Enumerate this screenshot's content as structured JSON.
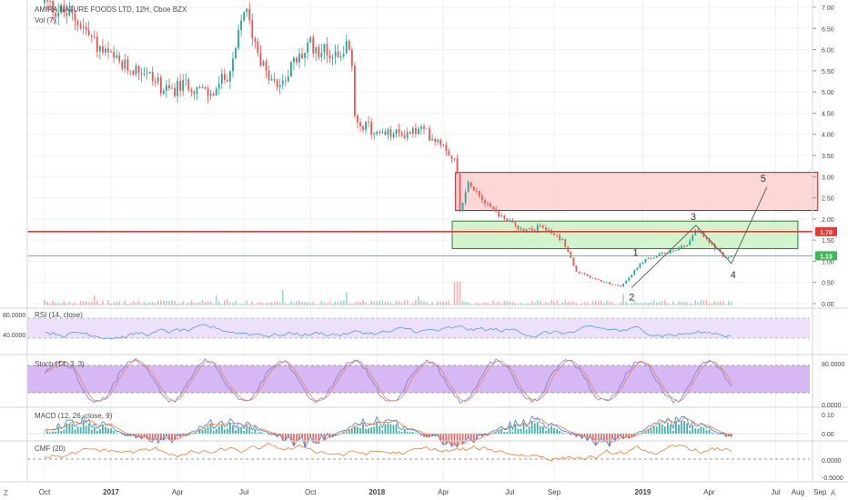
{
  "header": {
    "title": "AMIRA NATURE FOODS LTD, 12H, Cboe BZX",
    "volume": "Vol (7)"
  },
  "colors": {
    "up": "#26a69a",
    "down": "#ef5350",
    "grid": "#eef0f3",
    "axis": "#d1d4dc",
    "price_line": "#e53935",
    "support_line": "#43c96a",
    "resistance_box_fill": "#fbd3d1",
    "resistance_box_stroke": "#b71c1c",
    "support_box_fill": "#cdf3c8",
    "support_box_stroke": "#2e7d32",
    "rsi": "#4e9fdc",
    "rsi_band": "#ede0fa",
    "stoch_k": "#7b7bd4",
    "stoch_d": "#e2865c",
    "stoch_band": "#d6b8f5",
    "macd": "#3f7de0",
    "macd_signal": "#ef7a3b",
    "cmf": "#f17c2b"
  },
  "price_labels": {
    "current": "1.70",
    "support": "1.13"
  },
  "wave_labels": [
    "1",
    "2",
    "3",
    "4",
    "5"
  ],
  "indicators": {
    "rsi": {
      "label": "RSI (14, close)",
      "ticks": [
        "80.0000",
        "40.0000"
      ]
    },
    "stoch": {
      "label": "Stoch (14, 3, 3)",
      "ticks": [
        "80.0000",
        "0.0000"
      ]
    },
    "macd": {
      "label": "MACD (12, 26, close, 9)",
      "ticks": [
        "0.10",
        "0.00"
      ]
    },
    "cmf": {
      "label": "CMF (20)",
      "ticks": [
        "0.0000",
        "-0.5000"
      ]
    }
  },
  "corner": {
    "left": "Z",
    "right": "A"
  },
  "chart_data": {
    "type": "candlestick",
    "title": "AMIRA NATURE FOODS LTD, 12H, Cboe BZX",
    "ylim": [
      0,
      7.2
    ],
    "y_ticks": [
      "7.00",
      "6.50",
      "6.00",
      "5.50",
      "5.00",
      "4.50",
      "4.00",
      "3.50",
      "3.00",
      "2.50",
      "2.00",
      "1.50",
      "1.00",
      "0.50",
      "0.00"
    ],
    "x_ticks": [
      "Oct",
      "2017",
      "Apr",
      "Jul",
      "Oct",
      "2018",
      "Apr",
      "Jul",
      "Sep",
      "2019",
      "Apr",
      "Jul",
      "Aug",
      "Sep"
    ],
    "x_tick_months": [
      0,
      3,
      6,
      9,
      12,
      15,
      18,
      21,
      23,
      27,
      30,
      33,
      34,
      35
    ],
    "price_path": [
      [
        0,
        7.1
      ],
      [
        1.5,
        6.7
      ],
      [
        2.5,
        6.0
      ],
      [
        3.5,
        5.6
      ],
      [
        4.5,
        5.5
      ],
      [
        5.5,
        5.0
      ],
      [
        6.5,
        5.2
      ],
      [
        7.5,
        4.9
      ],
      [
        8.5,
        5.6
      ],
      [
        9,
        7.0
      ],
      [
        9.5,
        6.2
      ],
      [
        10,
        5.4
      ],
      [
        10.5,
        5.1
      ],
      [
        11,
        5.5
      ],
      [
        12,
        6.1
      ],
      [
        13,
        5.9
      ],
      [
        13.8,
        6.1
      ],
      [
        14,
        4.4
      ],
      [
        15,
        4.0
      ],
      [
        16,
        4.0
      ],
      [
        17,
        4.1
      ],
      [
        18,
        3.8
      ],
      [
        18.6,
        3.3
      ],
      [
        18.7,
        2.2
      ],
      [
        19.2,
        2.9
      ],
      [
        19.6,
        2.6
      ],
      [
        20.5,
        2.1
      ],
      [
        21.5,
        1.75
      ],
      [
        22.5,
        1.8
      ],
      [
        23.4,
        1.5
      ],
      [
        24,
        0.75
      ],
      [
        25,
        0.55
      ],
      [
        26,
        0.4
      ],
      [
        26.5,
        0.7
      ],
      [
        27,
        1.0
      ],
      [
        28,
        1.2
      ],
      [
        29,
        1.4
      ],
      [
        29.4,
        1.75
      ],
      [
        30.2,
        1.35
      ],
      [
        30.8,
        1.05
      ],
      [
        31.1,
        1.15
      ]
    ],
    "current_price": 1.7,
    "support_level": 1.13,
    "zones": [
      {
        "name": "resistance",
        "y": [
          2.2,
          3.1
        ],
        "x_months": [
          18.55,
          34.9
        ]
      },
      {
        "name": "support",
        "y": [
          1.3,
          1.95
        ],
        "x_months": [
          18.4,
          34.0
        ]
      }
    ],
    "wave_points": [
      {
        "label": "1",
        "month": 26.8,
        "price": 1.0
      },
      {
        "label": "2",
        "month": 26.5,
        "price": 0.38
      },
      {
        "label": "3",
        "month": 29.4,
        "price": 1.85
      },
      {
        "label": "4",
        "month": 31.0,
        "price": 0.95
      },
      {
        "label": "5",
        "month": 32.6,
        "price": 2.75
      }
    ]
  }
}
